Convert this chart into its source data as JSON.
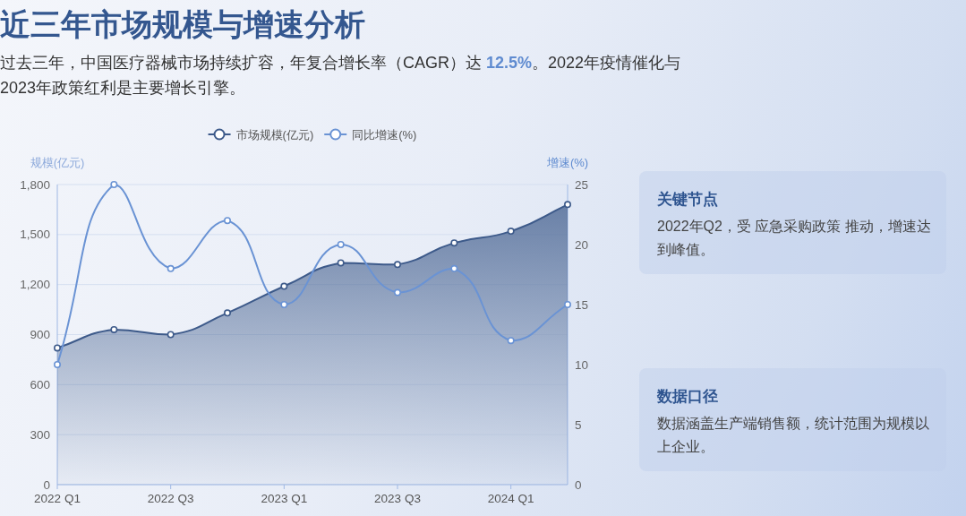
{
  "chart_data": {
    "type": "line",
    "title": "近三年市场规模与增速分析",
    "subtitle": "过去三年，中国医疗器械市场持续扩容，年复合增长率（CAGR）达 12.5%。2022年疫情催化与2023年政策红利是主要增长引擎。",
    "categories": [
      "2022 Q1",
      null,
      "2022 Q3",
      null,
      "2023 Q1",
      null,
      "2023 Q3",
      null,
      "2024 Q1",
      null
    ],
    "series": [
      {
        "name": "市场规模(亿元)",
        "type": "area",
        "color": "#3d5a8a",
        "values": [
          820,
          930,
          900,
          1030,
          1190,
          1330,
          1320,
          1450,
          1520,
          1680
        ]
      },
      {
        "name": "同比增速(%)",
        "axis": "y2",
        "color": "#6a93d4",
        "values": [
          10,
          25,
          18,
          22,
          15,
          20,
          16,
          18,
          12,
          15
        ]
      }
    ],
    "ylabel": "规模(亿元)",
    "y2label": "增速(%)",
    "ylim": [
      0,
      1800
    ],
    "yticks": [
      0,
      300,
      600,
      900,
      {
        "value": 1200,
        "label": "1,200"
      },
      {
        "value": 1500,
        "label": "1,500"
      },
      {
        "value": 1800,
        "label": "1,800"
      }
    ],
    "y2lim": [
      0,
      25
    ],
    "y2ticks": [
      0,
      5,
      10,
      15,
      20,
      25
    ],
    "grid": "y",
    "legend": "top",
    "marker": "circle",
    "annotations": [
      "关键节点",
      "2022年Q2，受 应急采购政策 推动，增速达到峰值。",
      "数据口径",
      "数据涵盖生产端销售额，统计范围为规模以上企业。"
    ]
  }
}
